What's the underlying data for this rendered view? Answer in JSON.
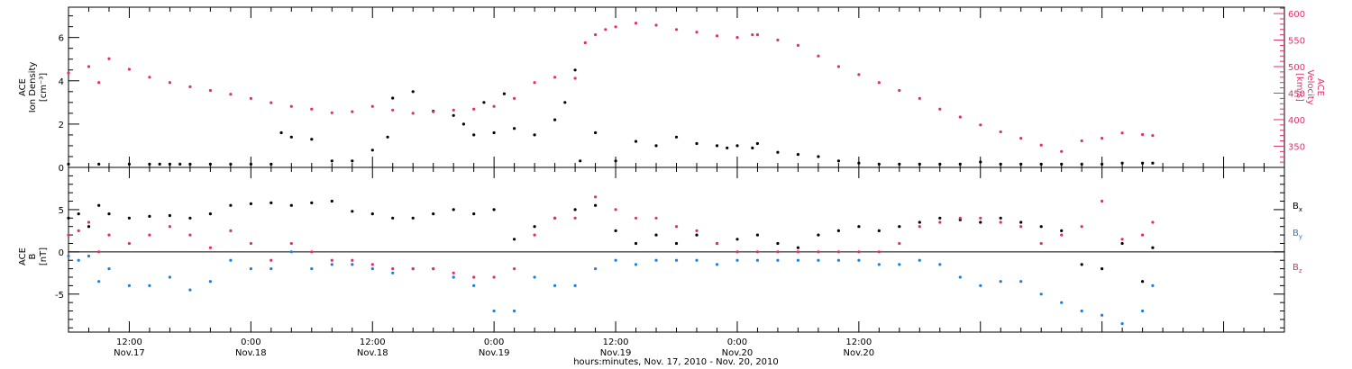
{
  "chart_data": [
    {
      "type": "scatter",
      "panel": "top",
      "ylabel_left": [
        "ACE",
        "Ion Density",
        "[cm⁻³]"
      ],
      "ylabel_right": [
        "ACE",
        "Velocity",
        "[km/s]"
      ],
      "y_left_ticks": [
        "0",
        "2",
        "4",
        "6"
      ],
      "y_left_lim": [
        0,
        7.4
      ],
      "y_right_ticks": [
        "350",
        "400",
        "450",
        "500",
        "550",
        "600"
      ],
      "y_right_lim": [
        310,
        612
      ],
      "series": [
        {
          "key": "density",
          "color": "#000000",
          "axis": "left",
          "x_hours": [
            0,
            3,
            6,
            8,
            9,
            10,
            11,
            12,
            14,
            16,
            18,
            20,
            21,
            22,
            24,
            26,
            28,
            30,
            31.5,
            32,
            34,
            36,
            38,
            39,
            40,
            41,
            42,
            43,
            44,
            46,
            48,
            49,
            50,
            50.5,
            52,
            54,
            56,
            58,
            60,
            62,
            64,
            65,
            66,
            67.5,
            68,
            70,
            72,
            74,
            76,
            78,
            80,
            82,
            84,
            86,
            88,
            90,
            92,
            94,
            96,
            98,
            100,
            102,
            104,
            106,
            107
          ],
          "y": [
            0.15,
            0.15,
            0.15,
            0.15,
            0.15,
            0.15,
            0.15,
            0.15,
            0.15,
            0.15,
            0.15,
            0.15,
            1.6,
            1.4,
            1.3,
            0.3,
            0.3,
            0.8,
            1.4,
            3.2,
            3.5,
            2.6,
            2.4,
            2.0,
            1.5,
            3.0,
            1.6,
            3.4,
            1.8,
            1.5,
            2.2,
            3.0,
            4.5,
            0.3,
            1.6,
            0.3,
            1.2,
            1.0,
            1.4,
            1.1,
            1.0,
            0.9,
            1.0,
            0.9,
            1.1,
            0.7,
            0.6,
            0.5,
            0.3,
            0.2,
            0.15,
            0.15,
            0.15,
            0.15,
            0.15,
            0.25,
            0.15,
            0.15,
            0.15,
            0.15,
            0.15,
            0.15,
            0.2,
            0.2,
            0.2
          ]
        },
        {
          "key": "velocity",
          "color": "#e0306a",
          "axis": "right",
          "x_hours": [
            0,
            2,
            3,
            4,
            6,
            8,
            10,
            12,
            14,
            16,
            18,
            20,
            22,
            24,
            26,
            28,
            30,
            32,
            34,
            36,
            38,
            40,
            42,
            44,
            46,
            48,
            50,
            51,
            52,
            53,
            54,
            56,
            58,
            60,
            62,
            64,
            66,
            67.5,
            68,
            70,
            72,
            74,
            76,
            78,
            80,
            82,
            84,
            86,
            88,
            90,
            92,
            94,
            96,
            98,
            100,
            102,
            104,
            106,
            107
          ],
          "y": [
            488,
            500,
            470,
            515,
            495,
            480,
            470,
            462,
            455,
            448,
            440,
            432,
            425,
            420,
            413,
            415,
            425,
            418,
            412,
            415,
            418,
            420,
            425,
            440,
            470,
            480,
            478,
            545,
            560,
            570,
            575,
            582,
            578,
            570,
            565,
            558,
            555,
            560,
            560,
            550,
            540,
            520,
            500,
            485,
            470,
            455,
            440,
            420,
            405,
            390,
            377,
            365,
            352,
            340,
            360,
            365,
            375,
            372,
            370
          ]
        }
      ]
    },
    {
      "type": "scatter",
      "panel": "bottom",
      "ylabel": [
        "ACE",
        "B",
        "[nT]"
      ],
      "y_ticks": [
        "-5",
        "0",
        "5"
      ],
      "ylim": [
        -9.5,
        10
      ],
      "zero_line": true,
      "series": [
        {
          "key": "bx",
          "name": "Bx",
          "color": "#000000",
          "x_hours": [
            0,
            1,
            2,
            3,
            4,
            6,
            8,
            10,
            12,
            14,
            16,
            18,
            20,
            22,
            24,
            26,
            28,
            30,
            32,
            34,
            36,
            38,
            40,
            42,
            44,
            46,
            48,
            50,
            52,
            54,
            56,
            58,
            60,
            62,
            64,
            66,
            68,
            70,
            72,
            74,
            76,
            78,
            80,
            82,
            84,
            86,
            88,
            90,
            92,
            94,
            96,
            98,
            100,
            102,
            104,
            106,
            107
          ],
          "y": [
            4.0,
            4.5,
            3.0,
            5.5,
            4.5,
            4.0,
            4.2,
            4.3,
            4.0,
            4.5,
            5.5,
            5.7,
            5.8,
            5.5,
            5.8,
            6.0,
            4.8,
            4.5,
            4.0,
            4.0,
            4.5,
            5.0,
            4.5,
            5.0,
            1.5,
            3.0,
            4.0,
            5.0,
            5.5,
            2.5,
            1.0,
            2.0,
            1.0,
            2.0,
            1.0,
            1.5,
            2.0,
            1.0,
            0.5,
            2.0,
            2.5,
            3.0,
            2.5,
            3.0,
            3.5,
            4.0,
            3.8,
            3.5,
            4.0,
            3.5,
            3.0,
            2.5,
            -1.5,
            -2.0,
            1.0,
            -3.5,
            0.5
          ]
        },
        {
          "key": "by",
          "name": "By",
          "color": "#1f7fd6",
          "x_hours": [
            0,
            1,
            2,
            3,
            4,
            6,
            8,
            10,
            12,
            14,
            16,
            18,
            20,
            22,
            24,
            26,
            28,
            30,
            32,
            34,
            36,
            38,
            40,
            42,
            44,
            46,
            48,
            50,
            52,
            54,
            56,
            58,
            60,
            62,
            64,
            66,
            68,
            70,
            72,
            74,
            76,
            78,
            80,
            82,
            84,
            86,
            88,
            90,
            92,
            94,
            96,
            98,
            100,
            102,
            104,
            106,
            107
          ],
          "y": [
            -0.5,
            -1.0,
            -0.5,
            -3.5,
            -2.0,
            -4.0,
            -4.0,
            -3.0,
            -4.5,
            -3.5,
            -1.0,
            -2.0,
            -2.0,
            0.0,
            -2.0,
            -1.5,
            -1.5,
            -2.0,
            -2.5,
            -2.0,
            -2.0,
            -3.0,
            -4.0,
            -7.0,
            -7.0,
            -3.0,
            -4.0,
            -4.0,
            -2.0,
            -1.0,
            -1.5,
            -1.0,
            -1.0,
            -1.0,
            -1.5,
            -1.0,
            -1.0,
            -1.0,
            -1.0,
            -1.0,
            -1.0,
            -1.0,
            -1.5,
            -1.5,
            -1.0,
            -1.5,
            -3.0,
            -4.0,
            -3.5,
            -3.5,
            -5.0,
            -6.0,
            -7.0,
            -7.5,
            -8.5,
            -7.0,
            -4.0
          ]
        },
        {
          "key": "bz",
          "name": "Bz",
          "color": "#e0306a",
          "x_hours": [
            0,
            1,
            2,
            3,
            4,
            6,
            8,
            10,
            12,
            14,
            16,
            18,
            20,
            22,
            24,
            26,
            28,
            30,
            32,
            34,
            36,
            38,
            40,
            42,
            44,
            46,
            48,
            50,
            52,
            54,
            56,
            58,
            60,
            62,
            64,
            66,
            68,
            70,
            72,
            74,
            76,
            78,
            80,
            82,
            84,
            86,
            88,
            90,
            92,
            94,
            96,
            98,
            100,
            102,
            104,
            106,
            107
          ],
          "y": [
            2.0,
            2.5,
            3.5,
            0.0,
            2.0,
            1.0,
            2.0,
            3.0,
            2.0,
            0.5,
            2.5,
            1.0,
            -1.0,
            1.0,
            0.0,
            -1.0,
            -1.0,
            -1.5,
            -2.0,
            -2.0,
            -2.0,
            -2.5,
            -3.0,
            -3.0,
            -2.0,
            2.0,
            4.0,
            4.0,
            6.5,
            5.0,
            4.0,
            4.0,
            3.0,
            2.5,
            1.0,
            0.0,
            0.0,
            0.0,
            0.0,
            0.0,
            0.0,
            0.0,
            0.0,
            1.0,
            3.0,
            3.5,
            4.0,
            4.0,
            3.5,
            3.0,
            1.0,
            2.0,
            3.0,
            6.0,
            1.5,
            2.0,
            3.5
          ]
        }
      ],
      "legend": [
        "B",
        "B",
        "B"
      ],
      "legend_sub": [
        "x",
        "y",
        "z"
      ]
    }
  ],
  "x_axis": {
    "start": "Nov. 17, 2010 06:00",
    "end_hours": 120,
    "ticks": [
      {
        "hours": 6,
        "time": "12:00",
        "date": "Nov.17"
      },
      {
        "hours": 18,
        "time": "0:00",
        "date": "Nov.18"
      },
      {
        "hours": 30,
        "time": "12:00",
        "date": "Nov.18"
      },
      {
        "hours": 42,
        "time": "0:00",
        "date": "Nov.19"
      },
      {
        "hours": 54,
        "time": "12:00",
        "date": "Nov.19"
      },
      {
        "hours": 66,
        "time": "0:00",
        "date": "Nov.20"
      },
      {
        "hours": 78,
        "time": "12:00",
        "date": "Nov.20"
      }
    ],
    "label": "hours:minutes, Nov. 17, 2010 - Nov. 20, 2010"
  }
}
